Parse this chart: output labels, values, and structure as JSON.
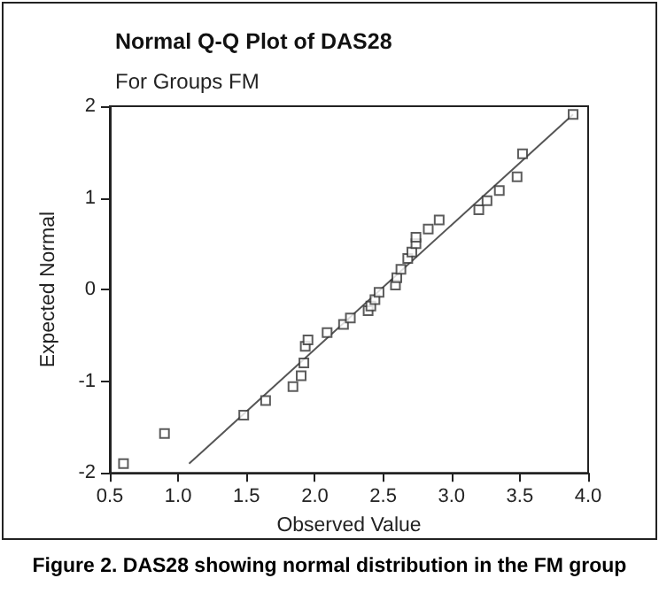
{
  "chart_data": {
    "type": "scatter",
    "title": "Normal Q-Q Plot of DAS28",
    "subtitle": "For Groups FM",
    "xlabel": "Observed Value",
    "ylabel": "Expected Normal",
    "annotations": [
      "Figure 2. DAS28 showing normal distribution in the FM group"
    ],
    "series": [
      {
        "color": "#333333",
        "marker": "square",
        "x": [
          0.6,
          0.9,
          1.48,
          1.64,
          1.84,
          1.9,
          1.92,
          1.93,
          1.95,
          2.09,
          2.21,
          2.26,
          2.39,
          2.41,
          2.44,
          2.47,
          2.59,
          2.6,
          2.63,
          2.68,
          2.71,
          2.74,
          2.74,
          2.83,
          2.91,
          3.2,
          3.26,
          3.35,
          3.48,
          3.52,
          3.89
        ],
        "values": [
          -1.9,
          -1.57,
          -1.37,
          -1.21,
          -1.06,
          -0.94,
          -0.8,
          -0.62,
          -0.55,
          -0.47,
          -0.38,
          -0.31,
          -0.23,
          -0.18,
          -0.11,
          -0.03,
          0.05,
          0.13,
          0.22,
          0.34,
          0.41,
          0.5,
          0.57,
          0.66,
          0.76,
          0.87,
          0.97,
          1.08,
          1.23,
          1.48,
          1.91
        ]
      },
      {
        "type": "line",
        "color": "#555555",
        "marker": "none",
        "x": [
          1.08,
          3.89
        ],
        "values": [
          -1.9,
          1.91
        ]
      }
    ],
    "xlim": [
      0.5,
      4.0
    ],
    "xticks": [
      {
        "value": 0.5,
        "label": "0.5"
      },
      {
        "value": 1,
        "label": "1.0"
      },
      {
        "value": 1.5,
        "label": "1.5"
      },
      {
        "value": 2,
        "label": "2.0"
      },
      {
        "value": 2.5,
        "label": "2.5"
      },
      {
        "value": 3,
        "label": "3.0"
      },
      {
        "value": 3.5,
        "label": "3.5"
      },
      {
        "value": 4,
        "label": "4.0"
      }
    ],
    "ylim": [
      -2,
      2
    ],
    "yticks": [
      -2,
      -1,
      0,
      1,
      2
    ],
    "grid": false
  }
}
